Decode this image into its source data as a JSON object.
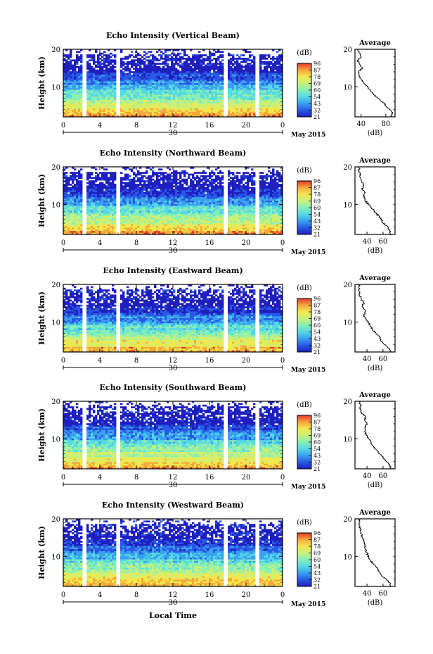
{
  "figure": {
    "month_label": "May 2015",
    "day_label": "30",
    "bottom_xlabel": "Local Time",
    "colorbar_unit": "(dB)",
    "colorbar_ticks": [
      "96",
      "87",
      "78",
      "69",
      "60",
      "54",
      "43",
      "32",
      "21"
    ],
    "colors": [
      "#1f1fbf",
      "#2858e6",
      "#3aa0f0",
      "#53d8e6",
      "#86efb5",
      "#c8f07a",
      "#f2e84a",
      "#f7a83a",
      "#e2382c"
    ]
  },
  "chart_data": [
    {
      "type": "heatmap",
      "title": "Echo Intensity (Vertical Beam)",
      "ylabel": "Height (km)",
      "xlim": [
        0,
        24
      ],
      "ylim": [
        2,
        20
      ],
      "x_ticks": [
        "0",
        "4",
        "8",
        "12",
        "16",
        "20",
        "0"
      ],
      "y_ticks": [
        "10",
        "20"
      ],
      "color_range_db": [
        21,
        96
      ],
      "data_gaps_hours": [
        2.2,
        5.8,
        17.7,
        21.2
      ],
      "profile": {
        "title": "Average",
        "xlabel": "(dB)",
        "xlim": [
          30,
          95
        ],
        "x_ticks": [
          "40",
          "80"
        ],
        "y_ticks": [
          "10",
          "20"
        ],
        "height_km": [
          2,
          3,
          4,
          5,
          6,
          7,
          8,
          9,
          10,
          11,
          12,
          13,
          14,
          15,
          16,
          17,
          18,
          19,
          20
        ],
        "echo_db": [
          88,
          91,
          86,
          80,
          75,
          67,
          60,
          55,
          50,
          44,
          40,
          37,
          36,
          42,
          38,
          34,
          40,
          37,
          34
        ]
      }
    },
    {
      "type": "heatmap",
      "title": "Echo Intensity (Northward Beam)",
      "ylabel": "Height (km)",
      "xlim": [
        0,
        24
      ],
      "ylim": [
        2,
        20
      ],
      "x_ticks": [
        "0",
        "4",
        "8",
        "12",
        "16",
        "20",
        "0"
      ],
      "y_ticks": [
        "10",
        "20"
      ],
      "color_range_db": [
        21,
        96
      ],
      "data_gaps_hours": [
        2.2,
        5.8,
        17.7,
        21.2
      ],
      "profile": {
        "title": "Average",
        "xlabel": "(dB)",
        "xlim": [
          25,
          75
        ],
        "x_ticks": [
          "40",
          "60"
        ],
        "y_ticks": [
          "10",
          "20"
        ],
        "height_km": [
          2,
          3,
          4,
          5,
          6,
          7,
          8,
          9,
          10,
          11,
          12,
          13,
          14,
          15,
          16,
          17,
          18,
          19,
          20
        ],
        "echo_db": [
          70,
          68,
          66,
          60,
          58,
          54,
          50,
          46,
          42,
          38,
          36,
          37,
          34,
          36,
          33,
          32,
          31,
          30,
          30
        ]
      }
    },
    {
      "type": "heatmap",
      "title": "Echo Intensity (Eastward Beam)",
      "ylabel": "Height (km)",
      "xlim": [
        0,
        24
      ],
      "ylim": [
        2,
        20
      ],
      "x_ticks": [
        "0",
        "4",
        "8",
        "12",
        "16",
        "20",
        "0"
      ],
      "y_ticks": [
        "10",
        "20"
      ],
      "color_range_db": [
        21,
        96
      ],
      "data_gaps_hours": [
        2.2,
        5.8,
        17.7,
        21.2
      ],
      "profile": {
        "title": "Average",
        "xlabel": "(dB)",
        "xlim": [
          25,
          75
        ],
        "x_ticks": [
          "40",
          "60"
        ],
        "y_ticks": [
          "10",
          "20"
        ],
        "height_km": [
          2,
          3,
          4,
          5,
          6,
          7,
          8,
          9,
          10,
          11,
          12,
          13,
          14,
          15,
          16,
          17,
          18,
          19,
          20
        ],
        "echo_db": [
          70,
          67,
          62,
          57,
          56,
          51,
          47,
          44,
          42,
          38,
          36,
          38,
          34,
          36,
          33,
          31,
          31,
          30,
          30
        ]
      }
    },
    {
      "type": "heatmap",
      "title": "Echo Intensity (Southward Beam)",
      "ylabel": "Height (km)",
      "xlim": [
        0,
        24
      ],
      "ylim": [
        2,
        20
      ],
      "x_ticks": [
        "0",
        "4",
        "8",
        "12",
        "16",
        "20",
        "0"
      ],
      "y_ticks": [
        "10",
        "20"
      ],
      "color_range_db": [
        21,
        96
      ],
      "data_gaps_hours": [
        2.2,
        5.8,
        17.7,
        21.2
      ],
      "profile": {
        "title": "Average",
        "xlabel": "(dB)",
        "xlim": [
          25,
          75
        ],
        "x_ticks": [
          "40",
          "60"
        ],
        "y_ticks": [
          "10",
          "20"
        ],
        "height_km": [
          2,
          3,
          4,
          5,
          6,
          7,
          8,
          9,
          10,
          11,
          12,
          13,
          14,
          15,
          16,
          17,
          18,
          19,
          20
        ],
        "echo_db": [
          70,
          68,
          64,
          60,
          56,
          52,
          48,
          45,
          42,
          39,
          37,
          38,
          40,
          37,
          38,
          33,
          31,
          32,
          30
        ]
      }
    },
    {
      "type": "heatmap",
      "title": "Echo Intensity (Westward Beam)",
      "ylabel": "Height (km)",
      "xlim": [
        0,
        24
      ],
      "ylim": [
        2,
        20
      ],
      "x_ticks": [
        "0",
        "4",
        "8",
        "12",
        "16",
        "20",
        "0"
      ],
      "y_ticks": [
        "10",
        "20"
      ],
      "color_range_db": [
        21,
        96
      ],
      "data_gaps_hours": [
        2.2,
        5.8,
        17.7,
        21.2
      ],
      "profile": {
        "title": "Average",
        "xlabel": "(dB)",
        "xlim": [
          25,
          75
        ],
        "x_ticks": [
          "40",
          "60"
        ],
        "y_ticks": [
          "10",
          "20"
        ],
        "height_km": [
          2,
          3,
          4,
          5,
          6,
          7,
          8,
          9,
          10,
          11,
          12,
          13,
          14,
          15,
          16,
          17,
          18,
          19,
          20
        ],
        "echo_db": [
          70,
          68,
          64,
          58,
          55,
          52,
          48,
          44,
          41,
          40,
          38,
          37,
          36,
          34,
          33,
          32,
          31,
          30,
          30
        ]
      }
    }
  ]
}
